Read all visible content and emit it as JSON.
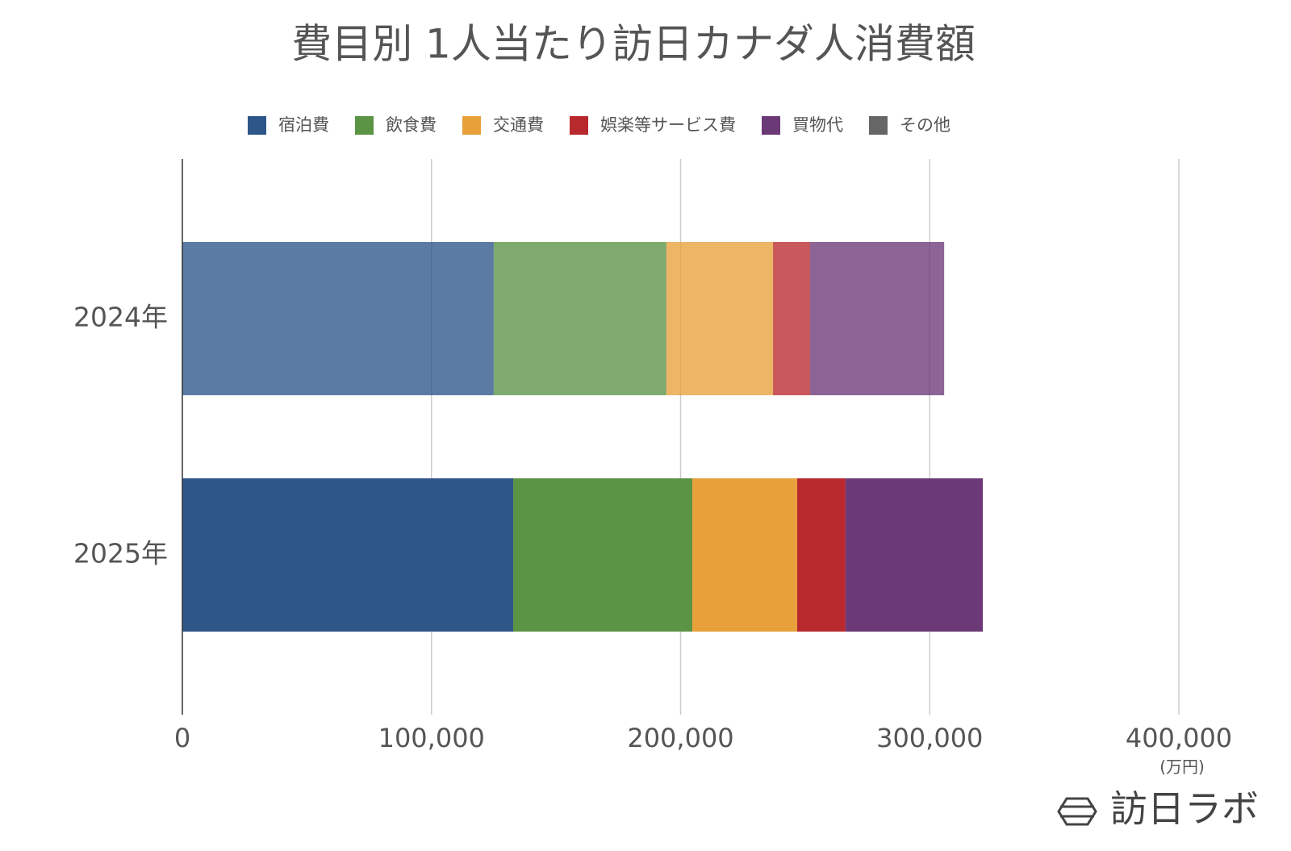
{
  "chart_data": {
    "type": "stacked_barh",
    "title": "費目別 1人当たり訪日カナダ人消費額",
    "categories": [
      "2024年",
      "2025年"
    ],
    "series": [
      {
        "name": "宿泊費",
        "color": "#2e5689",
        "values": [
          125000,
          132800
        ]
      },
      {
        "name": "飲食費",
        "color": "#5a9444",
        "values": [
          69300,
          71900
        ]
      },
      {
        "name": "交通費",
        "color": "#e8a03b",
        "values": [
          42800,
          42100
        ]
      },
      {
        "name": "娯楽等サービス費",
        "color": "#b8292e",
        "values": [
          14900,
          19400
        ]
      },
      {
        "name": "買物代",
        "color": "#6c3977",
        "values": [
          53800,
          55100
        ]
      },
      {
        "name": "その他",
        "color": "#666666",
        "values": [
          0,
          0
        ]
      }
    ],
    "xlim": [
      0,
      400000
    ],
    "xticks": [
      0,
      {
        "value": 100000,
        "label": "100,000"
      },
      {
        "value": 200000,
        "label": "200,000"
      },
      {
        "value": 300000,
        "label": "300,000"
      },
      {
        "value": 400000,
        "label": "400,000"
      }
    ],
    "unit_label": "(万円)",
    "grid": true,
    "legend": "top",
    "brand": "訪日ラボ"
  }
}
